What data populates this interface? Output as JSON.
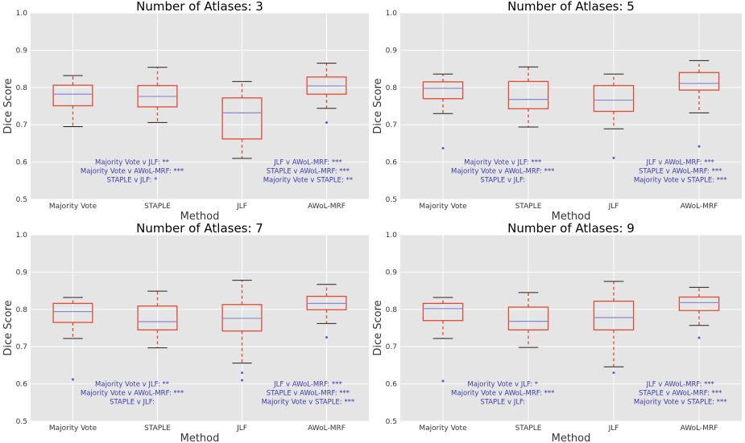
{
  "chart_data": [
    {
      "type": "box",
      "title": "Number of Atlases: 3",
      "xlabel": "Method",
      "ylabel": "Dice Score",
      "ylim": [
        0.5,
        1.0
      ],
      "yticks": [
        "0.5",
        "0.6",
        "0.7",
        "0.8",
        "0.9",
        "1.0"
      ],
      "categories": [
        "Majority Vote",
        "STAPLE",
        "JLF",
        "AWoL-MRF"
      ],
      "boxes": [
        {
          "whislo": 0.695,
          "q1": 0.751,
          "med": 0.782,
          "q3": 0.806,
          "whishi": 0.832,
          "fliers": []
        },
        {
          "whislo": 0.706,
          "q1": 0.748,
          "med": 0.776,
          "q3": 0.805,
          "whishi": 0.854,
          "fliers": []
        },
        {
          "whislo": 0.61,
          "q1": 0.662,
          "med": 0.732,
          "q3": 0.772,
          "whishi": 0.816,
          "fliers": []
        },
        {
          "whislo": 0.744,
          "q1": 0.782,
          "med": 0.804,
          "q3": 0.828,
          "whishi": 0.865,
          "fliers": [
            0.706
          ]
        }
      ],
      "annotations_left": [
        "Majority Vote v JLF: **",
        "Majority Vote v AWoL-MRF: ***",
        "STAPLE v JLF: *"
      ],
      "annotations_right": [
        "JLF v AWoL-MRF: ***",
        "STAPLE v AWoL-MRF: ***",
        "Majority Vote v STAPLE: **"
      ]
    },
    {
      "type": "box",
      "title": "Number of Atlases: 5",
      "xlabel": "Method",
      "ylabel": "Dice Score",
      "ylim": [
        0.5,
        1.0
      ],
      "yticks": [
        "0.5",
        "0.6",
        "0.7",
        "0.8",
        "0.9",
        "1.0"
      ],
      "categories": [
        "Majority Vote",
        "STAPLE",
        "JLF",
        "AWoL-MRF"
      ],
      "boxes": [
        {
          "whislo": 0.73,
          "q1": 0.77,
          "med": 0.798,
          "q3": 0.815,
          "whishi": 0.836,
          "fliers": [
            0.637
          ]
        },
        {
          "whislo": 0.694,
          "q1": 0.743,
          "med": 0.768,
          "q3": 0.816,
          "whishi": 0.855,
          "fliers": []
        },
        {
          "whislo": 0.689,
          "q1": 0.736,
          "med": 0.766,
          "q3": 0.805,
          "whishi": 0.836,
          "fliers": [
            0.611
          ]
        },
        {
          "whislo": 0.732,
          "q1": 0.793,
          "med": 0.811,
          "q3": 0.84,
          "whishi": 0.872,
          "fliers": [
            0.642
          ]
        }
      ],
      "annotations_left": [
        "Majority Vote v JLF: ***",
        "Majority Vote v AWoL-MRF: ***",
        "STAPLE v JLF:"
      ],
      "annotations_right": [
        "JLF v AWoL-MRF: ***",
        "STAPLE v AWoL-MRF: ***",
        "Majority Vote v STAPLE: ***"
      ]
    },
    {
      "type": "box",
      "title": "Number of Atlases: 7",
      "xlabel": "Method",
      "ylabel": "Dice Score",
      "ylim": [
        0.5,
        1.0
      ],
      "yticks": [
        "0.5",
        "0.6",
        "0.7",
        "0.8",
        "0.9",
        "1.0"
      ],
      "categories": [
        "Majority Vote",
        "STAPLE",
        "JLF",
        "AWoL-MRF"
      ],
      "boxes": [
        {
          "whislo": 0.722,
          "q1": 0.765,
          "med": 0.794,
          "q3": 0.816,
          "whishi": 0.832,
          "fliers": [
            0.612
          ]
        },
        {
          "whislo": 0.697,
          "q1": 0.745,
          "med": 0.767,
          "q3": 0.809,
          "whishi": 0.849,
          "fliers": []
        },
        {
          "whislo": 0.656,
          "q1": 0.742,
          "med": 0.776,
          "q3": 0.813,
          "whishi": 0.878,
          "fliers": [
            0.63,
            0.61
          ]
        },
        {
          "whislo": 0.762,
          "q1": 0.799,
          "med": 0.816,
          "q3": 0.835,
          "whishi": 0.867,
          "fliers": [
            0.725
          ]
        }
      ],
      "annotations_left": [
        "Majority Vote v JLF: **",
        "Majority Vote v AWoL-MRF: ***",
        "STAPLE v JLF:"
      ],
      "annotations_right": [
        "JLF v AWoL-MRF: ***",
        "STAPLE v AWoL-MRF: ***",
        "Majority Vote v STAPLE: ***"
      ]
    },
    {
      "type": "box",
      "title": "Number of Atlases: 9",
      "xlabel": "Method",
      "ylabel": "Dice Score",
      "ylim": [
        0.5,
        1.0
      ],
      "yticks": [
        "0.5",
        "0.6",
        "0.7",
        "0.8",
        "0.9",
        "1.0"
      ],
      "categories": [
        "Majority Vote",
        "STAPLE",
        "JLF",
        "AWoL-MRF"
      ],
      "boxes": [
        {
          "whislo": 0.722,
          "q1": 0.77,
          "med": 0.802,
          "q3": 0.816,
          "whishi": 0.832,
          "fliers": [
            0.608
          ]
        },
        {
          "whislo": 0.698,
          "q1": 0.745,
          "med": 0.768,
          "q3": 0.806,
          "whishi": 0.845,
          "fliers": []
        },
        {
          "whislo": 0.646,
          "q1": 0.745,
          "med": 0.778,
          "q3": 0.822,
          "whishi": 0.875,
          "fliers": [
            0.63
          ]
        },
        {
          "whislo": 0.757,
          "q1": 0.797,
          "med": 0.818,
          "q3": 0.833,
          "whishi": 0.859,
          "fliers": [
            0.724
          ]
        }
      ],
      "annotations_left": [
        "Majority Vote v JLF: *",
        "Majority Vote v AWoL-MRF: ***",
        "STAPLE v JLF:"
      ],
      "annotations_right": [
        "JLF v AWoL-MRF: ***",
        "STAPLE v AWoL-MRF: ***",
        "Majority Vote v STAPLE: ***"
      ]
    }
  ],
  "colors": {
    "panel_bg": "#e5e5e5",
    "grid": "#ffffff",
    "box": "#e24a33",
    "median": "#8a86d6",
    "flier": "#5b5bd1",
    "annotation": "#3b3bb0"
  }
}
